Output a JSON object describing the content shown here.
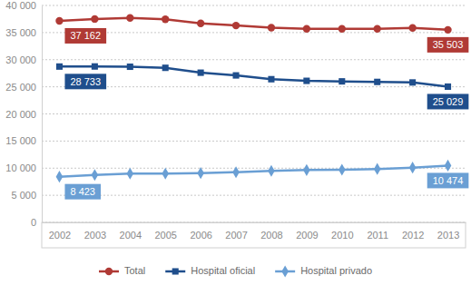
{
  "chart_data": {
    "type": "line",
    "categories": [
      "2002",
      "2003",
      "2004",
      "2005",
      "2006",
      "2007",
      "2008",
      "2009",
      "2010",
      "2011",
      "2012",
      "2013"
    ],
    "series": [
      {
        "name": "Total",
        "color": "#b03a35",
        "marker": "circle",
        "values": [
          37162,
          37500,
          37700,
          37450,
          36700,
          36300,
          35900,
          35700,
          35700,
          35700,
          35850,
          35503
        ],
        "value_labels": [
          "37 162",
          null,
          null,
          null,
          null,
          null,
          null,
          null,
          null,
          null,
          null,
          "35 503"
        ]
      },
      {
        "name": "Hospital oficial",
        "color": "#1f4e8c",
        "marker": "square",
        "values": [
          28733,
          28750,
          28700,
          28500,
          27600,
          27100,
          26400,
          26100,
          26000,
          25900,
          25800,
          25029
        ],
        "value_labels": [
          "28 733",
          null,
          null,
          null,
          null,
          null,
          null,
          null,
          null,
          null,
          null,
          "25 029"
        ]
      },
      {
        "name": "Hospital privado",
        "color": "#6a9fd4",
        "marker": "diamond",
        "values": [
          8423,
          8750,
          9000,
          9000,
          9100,
          9250,
          9500,
          9650,
          9700,
          9850,
          10100,
          10474
        ],
        "value_labels": [
          "8 423",
          null,
          null,
          null,
          null,
          null,
          null,
          null,
          null,
          null,
          null,
          "10 474"
        ]
      }
    ],
    "ylim": [
      0,
      40000
    ],
    "yticks": [
      0,
      {
        "value": 5000,
        "label": "5 000"
      },
      {
        "value": 10000,
        "label": "10 000"
      },
      {
        "value": 15000,
        "label": "15 000"
      },
      {
        "value": 20000,
        "label": "20 000"
      },
      {
        "value": 25000,
        "label": "25 000"
      },
      {
        "value": 30000,
        "label": "30 000"
      },
      {
        "value": 35000,
        "label": "35 000"
      },
      {
        "value": 40000,
        "label": "40 000"
      }
    ],
    "grid": true,
    "data_labels": true,
    "legend": "bottom"
  }
}
